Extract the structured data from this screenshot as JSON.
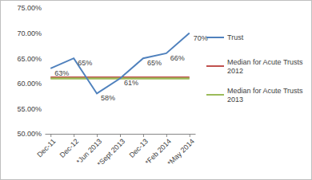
{
  "chart_data": {
    "type": "line",
    "categories": [
      "Dec-11",
      "Dec-12",
      "*Jun 2013",
      "*Sept 2013",
      "Dec-13",
      "*Feb 2014",
      "*May 2014"
    ],
    "series": [
      {
        "name": "Trust",
        "color": "#4f81bd",
        "values": [
          63,
          65,
          58,
          61,
          65,
          66,
          70
        ],
        "data_labels": true,
        "value_labels": [
          "63%",
          "65%",
          "58%",
          "61%",
          "65%",
          "66%",
          "70%"
        ]
      },
      {
        "name": "Median for Acute Trusts 2012",
        "color": "#c0504d",
        "values": [
          61.2,
          61.2,
          61.2,
          61.2,
          61.2,
          61.2,
          61.2
        ]
      },
      {
        "name": "Median for Acute Trusts 2013",
        "color": "#9bbb59",
        "values": [
          61,
          61,
          61,
          61,
          61,
          61,
          61
        ]
      }
    ],
    "ylim": [
      50,
      75
    ],
    "yticks": [
      {
        "value": 50,
        "label": "50.00%"
      },
      {
        "value": 55,
        "label": "55.00%"
      },
      {
        "value": 60,
        "label": "60.00%"
      },
      {
        "value": 65,
        "label": "65.00%"
      },
      {
        "value": 70,
        "label": "70.00%"
      },
      {
        "value": 75,
        "label": "75.00%"
      }
    ],
    "grid": false,
    "legend": "right"
  }
}
